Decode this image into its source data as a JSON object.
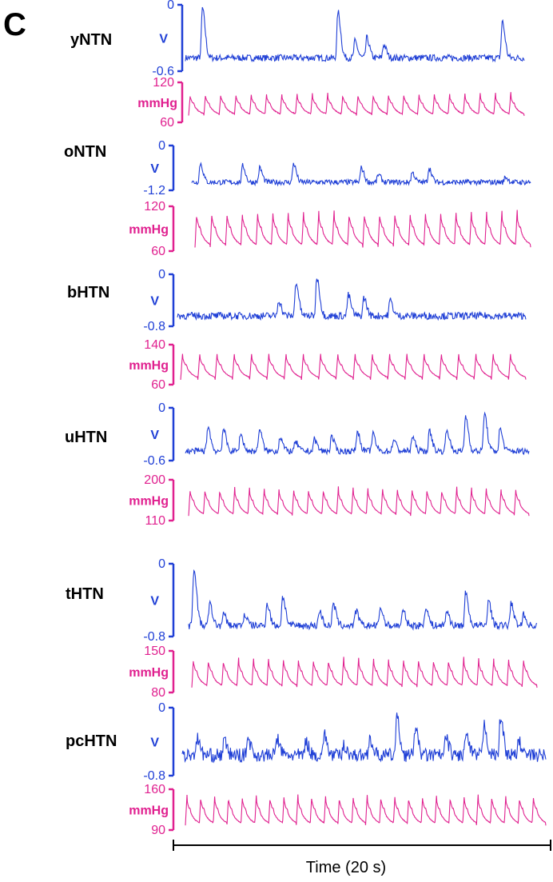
{
  "chart_data": {
    "type": "line",
    "panel_label": "C",
    "colors": {
      "nerve": "#1f3fd6",
      "pressure": "#e0208f"
    },
    "time_label": "Time (20 s)",
    "time_span_s": 20,
    "groups": [
      {
        "name": "yNTN",
        "nerve": {
          "unit": "V",
          "ylim": [
            -0.6,
            0
          ],
          "tick_labels": [
            "0",
            "-0.6"
          ],
          "baseline": 0.2,
          "bursts": [
            [
              1.0,
              0.95
            ],
            [
              9.0,
              0.9
            ],
            [
              10.0,
              0.45
            ],
            [
              10.7,
              0.5
            ],
            [
              11.7,
              0.4
            ],
            [
              18.7,
              0.75
            ]
          ],
          "noise": 0.05,
          "length": 0.875
        },
        "pressure": {
          "unit": "mmHg",
          "ylim": [
            60,
            120
          ],
          "tick_labels": [
            "120",
            "mmHg",
            "60"
          ],
          "low": 70,
          "high": 105,
          "beats": 22,
          "length": 0.91
        }
      },
      {
        "name": "oNTN",
        "nerve": {
          "unit": "V",
          "ylim": [
            -1.2,
            0
          ],
          "tick_labels": [
            "0",
            "-1.2"
          ],
          "baseline": 0.18,
          "bursts": [
            [
              0.5,
              0.6
            ],
            [
              3.0,
              0.55
            ],
            [
              4.0,
              0.5
            ],
            [
              6.0,
              0.6
            ],
            [
              10.0,
              0.5
            ],
            [
              11.0,
              0.35
            ],
            [
              13.0,
              0.4
            ],
            [
              14.0,
              0.5
            ],
            [
              18.5,
              0.3
            ]
          ],
          "noise": 0.06,
          "length": 0.95
        },
        "pressure": {
          "unit": "mmHg",
          "ylim": [
            60,
            120
          ],
          "tick_labels": [
            "120",
            "mmHg",
            "60"
          ],
          "low": 65,
          "high": 115,
          "beats": 22,
          "length": 0.95
        }
      },
      {
        "name": "bHTN",
        "nerve": {
          "unit": "V",
          "ylim": [
            -0.8,
            0
          ],
          "tick_labels": [
            "0",
            "-0.8"
          ],
          "baseline": 0.2,
          "bursts": [
            [
              5.8,
              0.5
            ],
            [
              6.8,
              0.85
            ],
            [
              8.0,
              0.95
            ],
            [
              9.8,
              0.6
            ],
            [
              10.7,
              0.55
            ],
            [
              12.2,
              0.5
            ]
          ],
          "noise": 0.07,
          "length": 0.95
        },
        "pressure": {
          "unit": "mmHg",
          "ylim": [
            60,
            140
          ],
          "tick_labels": [
            "140",
            "mmHg",
            "60"
          ],
          "low": 70,
          "high": 125,
          "beats": 20,
          "length": 0.93
        }
      },
      {
        "name": "uHTN",
        "nerve": {
          "unit": "V",
          "ylim": [
            -0.6,
            0
          ],
          "tick_labels": [
            "0",
            "-0.6"
          ],
          "baseline": 0.18,
          "bursts": [
            [
              1.3,
              0.65
            ],
            [
              2.2,
              0.6
            ],
            [
              3.2,
              0.5
            ],
            [
              4.3,
              0.6
            ],
            [
              5.5,
              0.45
            ],
            [
              6.4,
              0.35
            ],
            [
              7.5,
              0.4
            ],
            [
              8.5,
              0.45
            ],
            [
              10.0,
              0.55
            ],
            [
              10.9,
              0.5
            ],
            [
              12.1,
              0.4
            ],
            [
              13.2,
              0.45
            ],
            [
              14.2,
              0.55
            ],
            [
              15.2,
              0.6
            ],
            [
              16.3,
              0.85
            ],
            [
              17.4,
              0.9
            ],
            [
              18.3,
              0.6
            ]
          ],
          "noise": 0.06,
          "length": 0.95
        },
        "pressure": {
          "unit": "mmHg",
          "ylim": [
            110,
            200
          ],
          "tick_labels": [
            "200",
            "mmHg",
            "110"
          ],
          "low": 120,
          "high": 185,
          "beats": 23,
          "length": 0.95
        }
      },
      {
        "name": "tHTN",
        "nerve": {
          "unit": "V",
          "ylim": [
            -0.8,
            0
          ],
          "tick_labels": [
            "0",
            "-0.8"
          ],
          "baseline": 0.15,
          "bursts": [
            [
              0.3,
              0.95
            ],
            [
              1.2,
              0.45
            ],
            [
              2.0,
              0.3
            ],
            [
              3.2,
              0.3
            ],
            [
              4.5,
              0.45
            ],
            [
              5.4,
              0.55
            ],
            [
              7.5,
              0.35
            ],
            [
              8.3,
              0.45
            ],
            [
              9.6,
              0.35
            ],
            [
              11.0,
              0.4
            ],
            [
              12.3,
              0.35
            ],
            [
              13.6,
              0.4
            ],
            [
              14.8,
              0.35
            ],
            [
              15.9,
              0.6
            ],
            [
              17.2,
              0.5
            ],
            [
              18.5,
              0.45
            ],
            [
              19.2,
              0.3
            ]
          ],
          "noise": 0.05,
          "length": 0.93
        },
        "pressure": {
          "unit": "mmHg",
          "ylim": [
            80,
            150
          ],
          "tick_labels": [
            "150",
            "mmHg",
            "80"
          ],
          "low": 88,
          "high": 140,
          "beats": 23,
          "length": 0.94
        }
      },
      {
        "name": "pcHTN",
        "nerve": {
          "unit": "V",
          "ylim": [
            -0.8,
            0
          ],
          "tick_labels": [
            "0",
            "-0.8"
          ],
          "baseline": 0.3,
          "bursts": [
            [
              0.8,
              0.55
            ],
            [
              2.3,
              0.5
            ],
            [
              3.6,
              0.55
            ],
            [
              5.2,
              0.55
            ],
            [
              6.8,
              0.5
            ],
            [
              7.8,
              0.6
            ],
            [
              8.9,
              0.45
            ],
            [
              10.3,
              0.55
            ],
            [
              11.8,
              0.85
            ],
            [
              12.8,
              0.7
            ],
            [
              14.5,
              0.55
            ],
            [
              15.6,
              0.6
            ],
            [
              16.6,
              0.75
            ],
            [
              17.5,
              0.85
            ],
            [
              18.5,
              0.5
            ]
          ],
          "noise": 0.1,
          "length": 1.0
        },
        "pressure": {
          "unit": "mmHg",
          "ylim": [
            90,
            160
          ],
          "tick_labels": [
            "160",
            "mmHg",
            "90"
          ],
          "low": 98,
          "high": 152,
          "beats": 26,
          "length": 1.0
        }
      }
    ]
  }
}
